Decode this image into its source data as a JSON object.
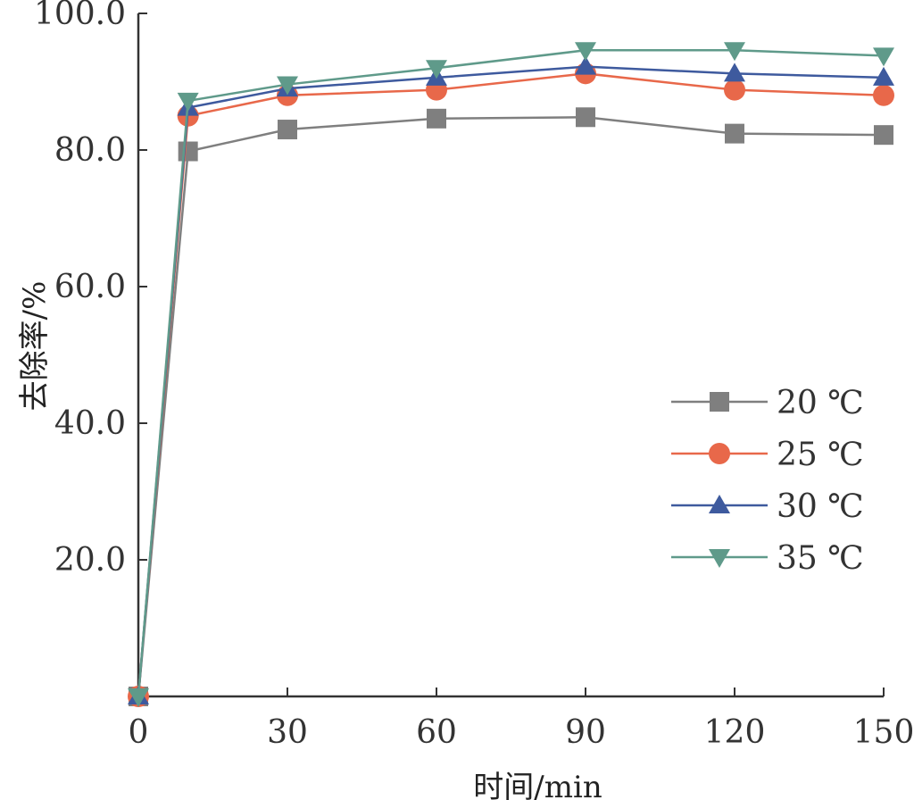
{
  "chart_data": {
    "type": "line",
    "xlabel": "时间/min",
    "ylabel": "去除率/%",
    "xlim": [
      0,
      150
    ],
    "ylim": [
      0,
      100
    ],
    "x_ticks": [
      0,
      30,
      60,
      90,
      120,
      150
    ],
    "x_tick_labels": [
      "0",
      "30",
      "60",
      "90",
      "120",
      "150"
    ],
    "y_ticks": [
      20,
      40,
      60,
      80,
      100
    ],
    "y_tick_labels": [
      "20.0",
      "40.0",
      "60.0",
      "80.0",
      "100.0"
    ],
    "grid": false,
    "legend_position": "right",
    "x": [
      0,
      10,
      30,
      60,
      90,
      120,
      150
    ],
    "series": [
      {
        "name": "20 ℃",
        "marker": "square",
        "color": "#7f7f7f",
        "values": [
          0,
          79.8,
          83.0,
          84.6,
          84.8,
          82.4,
          82.2
        ]
      },
      {
        "name": "25 ℃",
        "marker": "circle",
        "color": "#e8684a",
        "values": [
          0,
          85.0,
          88.0,
          88.8,
          91.2,
          88.8,
          88.0
        ]
      },
      {
        "name": "30 ℃",
        "marker": "triangle-up",
        "color": "#3e5a9e",
        "values": [
          0,
          86.2,
          89.0,
          90.6,
          92.2,
          91.2,
          90.6
        ]
      },
      {
        "name": "35 ℃",
        "marker": "triangle-down",
        "color": "#5f9a8a",
        "values": [
          0,
          87.2,
          89.6,
          92.0,
          94.6,
          94.6,
          93.8
        ]
      }
    ]
  }
}
